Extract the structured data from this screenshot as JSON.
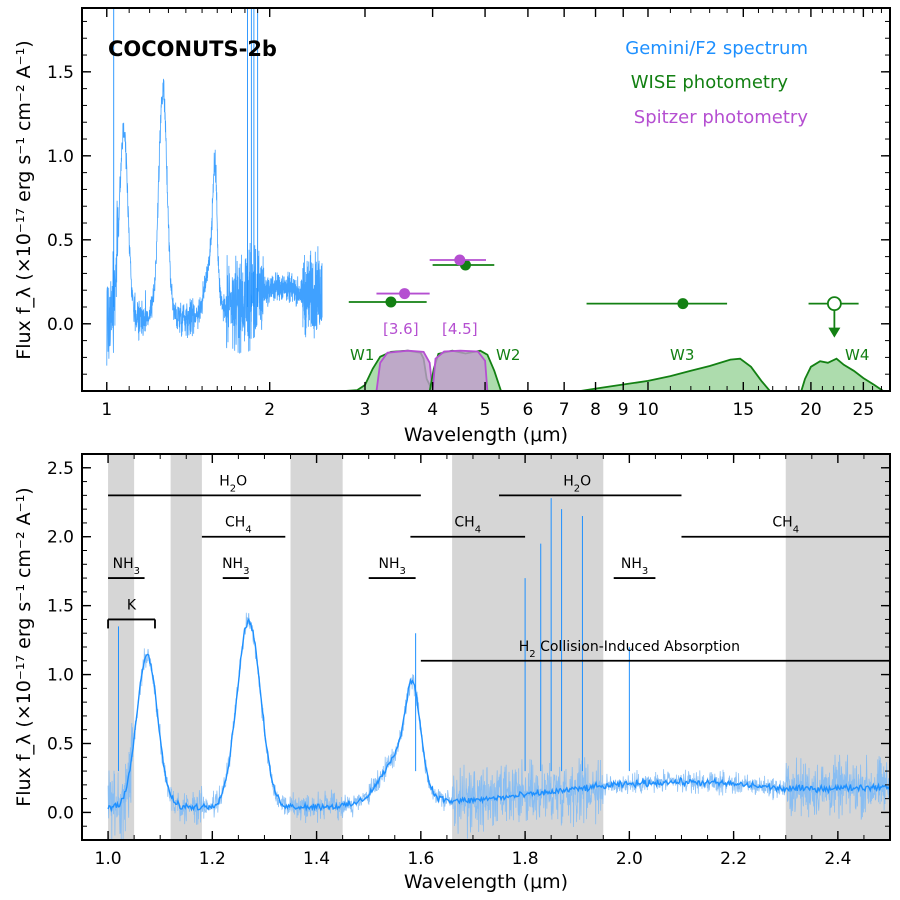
{
  "colors": {
    "spectrum": "#1e90ff",
    "wise": "#138013",
    "wise_fill": "#96d296",
    "spitzer": "#b54fd1",
    "spitzer_fill": "#c39bcf",
    "shade": "#d6d6d6"
  },
  "chart_data": [
    {
      "type": "line",
      "panel": "top",
      "title": "COCONUTS-2b",
      "xlabel": "Wavelength (μm)",
      "ylabel": "Flux f_λ (×10⁻¹⁷ erg s⁻¹ cm⁻² A⁻¹)",
      "xscale": "log",
      "xlim": [
        0.9,
        28
      ],
      "ylim": [
        -0.4,
        1.88
      ],
      "xticks": [
        1,
        2,
        3,
        4,
        5,
        6,
        7,
        8,
        9,
        10,
        15,
        20,
        25
      ],
      "xtick_labels": [
        "1",
        "2",
        "3",
        "4",
        "5",
        "6",
        "7",
        "8",
        "9",
        "10",
        "15",
        "20",
        "25"
      ],
      "yticks": [
        0.0,
        0.5,
        1.0,
        1.5
      ],
      "ytick_labels": [
        "0.0",
        "0.5",
        "1.0",
        "1.5"
      ],
      "legend": [
        "Gemini/F2 spectrum",
        "WISE photometry",
        "Spitzer photometry"
      ],
      "legend_position": "top-right",
      "series": [
        {
          "name": "WISE photometry",
          "points": [
            {
              "x": 3.35,
              "xerr": [
                2.8,
                3.9
              ],
              "y": 0.13
            },
            {
              "x": 4.6,
              "xerr": [
                4.0,
                5.2
              ],
              "y": 0.35
            },
            {
              "x": 11.6,
              "xerr": [
                7.7,
                14.0
              ],
              "y": 0.12
            },
            {
              "x": 22.1,
              "xerr": [
                19.8,
                24.5
              ],
              "y": 0.12,
              "upper_limit": true
            }
          ]
        },
        {
          "name": "Spitzer photometry",
          "points": [
            {
              "x": 3.55,
              "xerr": [
                3.15,
                3.95
              ],
              "y": 0.18
            },
            {
              "x": 4.49,
              "xerr": [
                3.95,
                5.02
              ],
              "y": 0.38
            }
          ]
        }
      ],
      "band_labels": [
        {
          "text": "W1",
          "family": "wise"
        },
        {
          "text": "[3.6]",
          "family": "spitzer"
        },
        {
          "text": "[4.5]",
          "family": "spitzer"
        },
        {
          "text": "W2",
          "family": "wise"
        },
        {
          "text": "W3",
          "family": "wise"
        },
        {
          "text": "W4",
          "family": "wise"
        }
      ]
    },
    {
      "type": "line",
      "panel": "bottom",
      "xlabel": "Wavelength (μm)",
      "ylabel": "Flux f_λ (×10⁻¹⁷ erg s⁻¹ cm⁻² A⁻¹)",
      "xlim": [
        0.95,
        2.5
      ],
      "ylim": [
        -0.2,
        2.6
      ],
      "xticks": [
        1.0,
        1.2,
        1.4,
        1.6,
        1.8,
        2.0,
        2.2,
        2.4
      ],
      "xtick_labels": [
        "1.0",
        "1.2",
        "1.4",
        "1.6",
        "1.8",
        "2.0",
        "2.2",
        "2.4"
      ],
      "yticks": [
        0.0,
        0.5,
        1.0,
        1.5,
        2.0,
        2.5
      ],
      "ytick_labels": [
        "0.0",
        "0.5",
        "1.0",
        "1.5",
        "2.0",
        "2.5"
      ],
      "shaded_regions": [
        [
          1.0,
          1.05
        ],
        [
          1.12,
          1.18
        ],
        [
          1.35,
          1.45
        ],
        [
          1.66,
          1.95
        ],
        [
          2.3,
          2.5
        ]
      ],
      "features": [
        {
          "label": "H2O",
          "sub": "2",
          "tail": "O",
          "x": [
            1.0,
            1.6
          ],
          "y": 2.3,
          "label_x": 1.24,
          "ticks": false
        },
        {
          "label": "H2O",
          "sub": "2",
          "tail": "O",
          "x": [
            1.75,
            2.1
          ],
          "y": 2.3,
          "label_x": 1.9,
          "ticks": false
        },
        {
          "label": "CH4",
          "sub": "4",
          "tail": "",
          "x": [
            1.18,
            1.34
          ],
          "y": 2.0,
          "label_x": 1.25,
          "ticks": false
        },
        {
          "label": "CH4",
          "sub": "4",
          "tail": "",
          "x": [
            1.58,
            1.8
          ],
          "y": 2.0,
          "label_x": 1.69,
          "ticks": false
        },
        {
          "label": "CH4",
          "sub": "4",
          "tail": "",
          "x": [
            2.1,
            2.5
          ],
          "y": 2.0,
          "label_x": 2.3,
          "ticks": false
        },
        {
          "label": "NH3",
          "sub": "3",
          "tail": "",
          "x": [
            1.0,
            1.07
          ],
          "y": 1.7,
          "label_x": 1.035,
          "ticks": false
        },
        {
          "label": "NH3",
          "sub": "3",
          "tail": "",
          "x": [
            1.22,
            1.27
          ],
          "y": 1.7,
          "label_x": 1.245,
          "ticks": false
        },
        {
          "label": "NH3",
          "sub": "3",
          "tail": "",
          "x": [
            1.5,
            1.59
          ],
          "y": 1.7,
          "label_x": 1.545,
          "ticks": false
        },
        {
          "label": "NH3",
          "sub": "3",
          "tail": "",
          "x": [
            1.97,
            2.05
          ],
          "y": 1.7,
          "label_x": 2.01,
          "ticks": false
        },
        {
          "label": "K",
          "sub": "",
          "tail": "",
          "x": [
            1.0,
            1.09
          ],
          "y": 1.4,
          "label_x": 1.045,
          "ticks": true
        },
        {
          "label": "H2 Collision-Induced Absorption",
          "sub": "2",
          "tail": " Collision-Induced Absorption",
          "x": [
            1.6,
            2.5
          ],
          "y": 1.1,
          "label_x": 2.0,
          "ticks": false
        }
      ]
    }
  ]
}
